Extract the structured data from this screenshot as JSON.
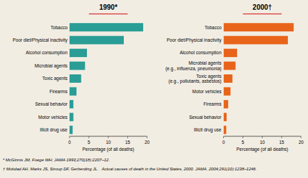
{
  "chart_data": [
    {
      "type": "bar",
      "orientation": "horizontal",
      "title": "1990*",
      "categories": [
        "Tobacco",
        "Poor diet/Physical inactivity",
        "Alcohol consumption",
        "Microbial agents",
        "Toxic agents",
        "Firearms",
        "Sexual behavior",
        "Motor vehicles",
        "Illicit drug use"
      ],
      "values": [
        19.0,
        14.0,
        4.5,
        4.0,
        3.0,
        1.8,
        1.0,
        1.0,
        0.8
      ],
      "color": "#2a9d96",
      "xlabel": "Percentage (of all deaths)",
      "xlim": [
        0,
        20
      ],
      "xticks": [
        0,
        5,
        10,
        15,
        20
      ],
      "grid": false,
      "annotations": [
        "* McGinnis JM, Foege WH; JAMA 1993;270(18):2207–12."
      ]
    },
    {
      "type": "bar",
      "orientation": "horizontal",
      "title": "2000†",
      "categories": [
        "Tobacco",
        "Poor diet/Physical inactivity",
        "Alcohol consumption",
        "Microbial agents\n(e.g., influenza, pneumonia)",
        "Toxic agents\n(e.g., pollutants, asbestos)",
        "Motor vehicles",
        "Firearms",
        "Sexual behavior",
        "Illicit drug use"
      ],
      "values": [
        18.1,
        16.6,
        3.5,
        3.1,
        2.3,
        1.8,
        1.2,
        0.8,
        0.7
      ],
      "color": "#e8641a",
      "xlabel": "Percentage (of all deaths)",
      "xlim": [
        0,
        20
      ],
      "xticks": [
        0,
        5,
        10,
        15,
        20
      ],
      "grid": false,
      "annotations": [
        "† Mokdad AH, Marks JS, Stroup DF, Gerberding JL.   Actual causes of death in the United States, 2000. JAMA. 2004;291(10):1238–1246."
      ]
    }
  ]
}
